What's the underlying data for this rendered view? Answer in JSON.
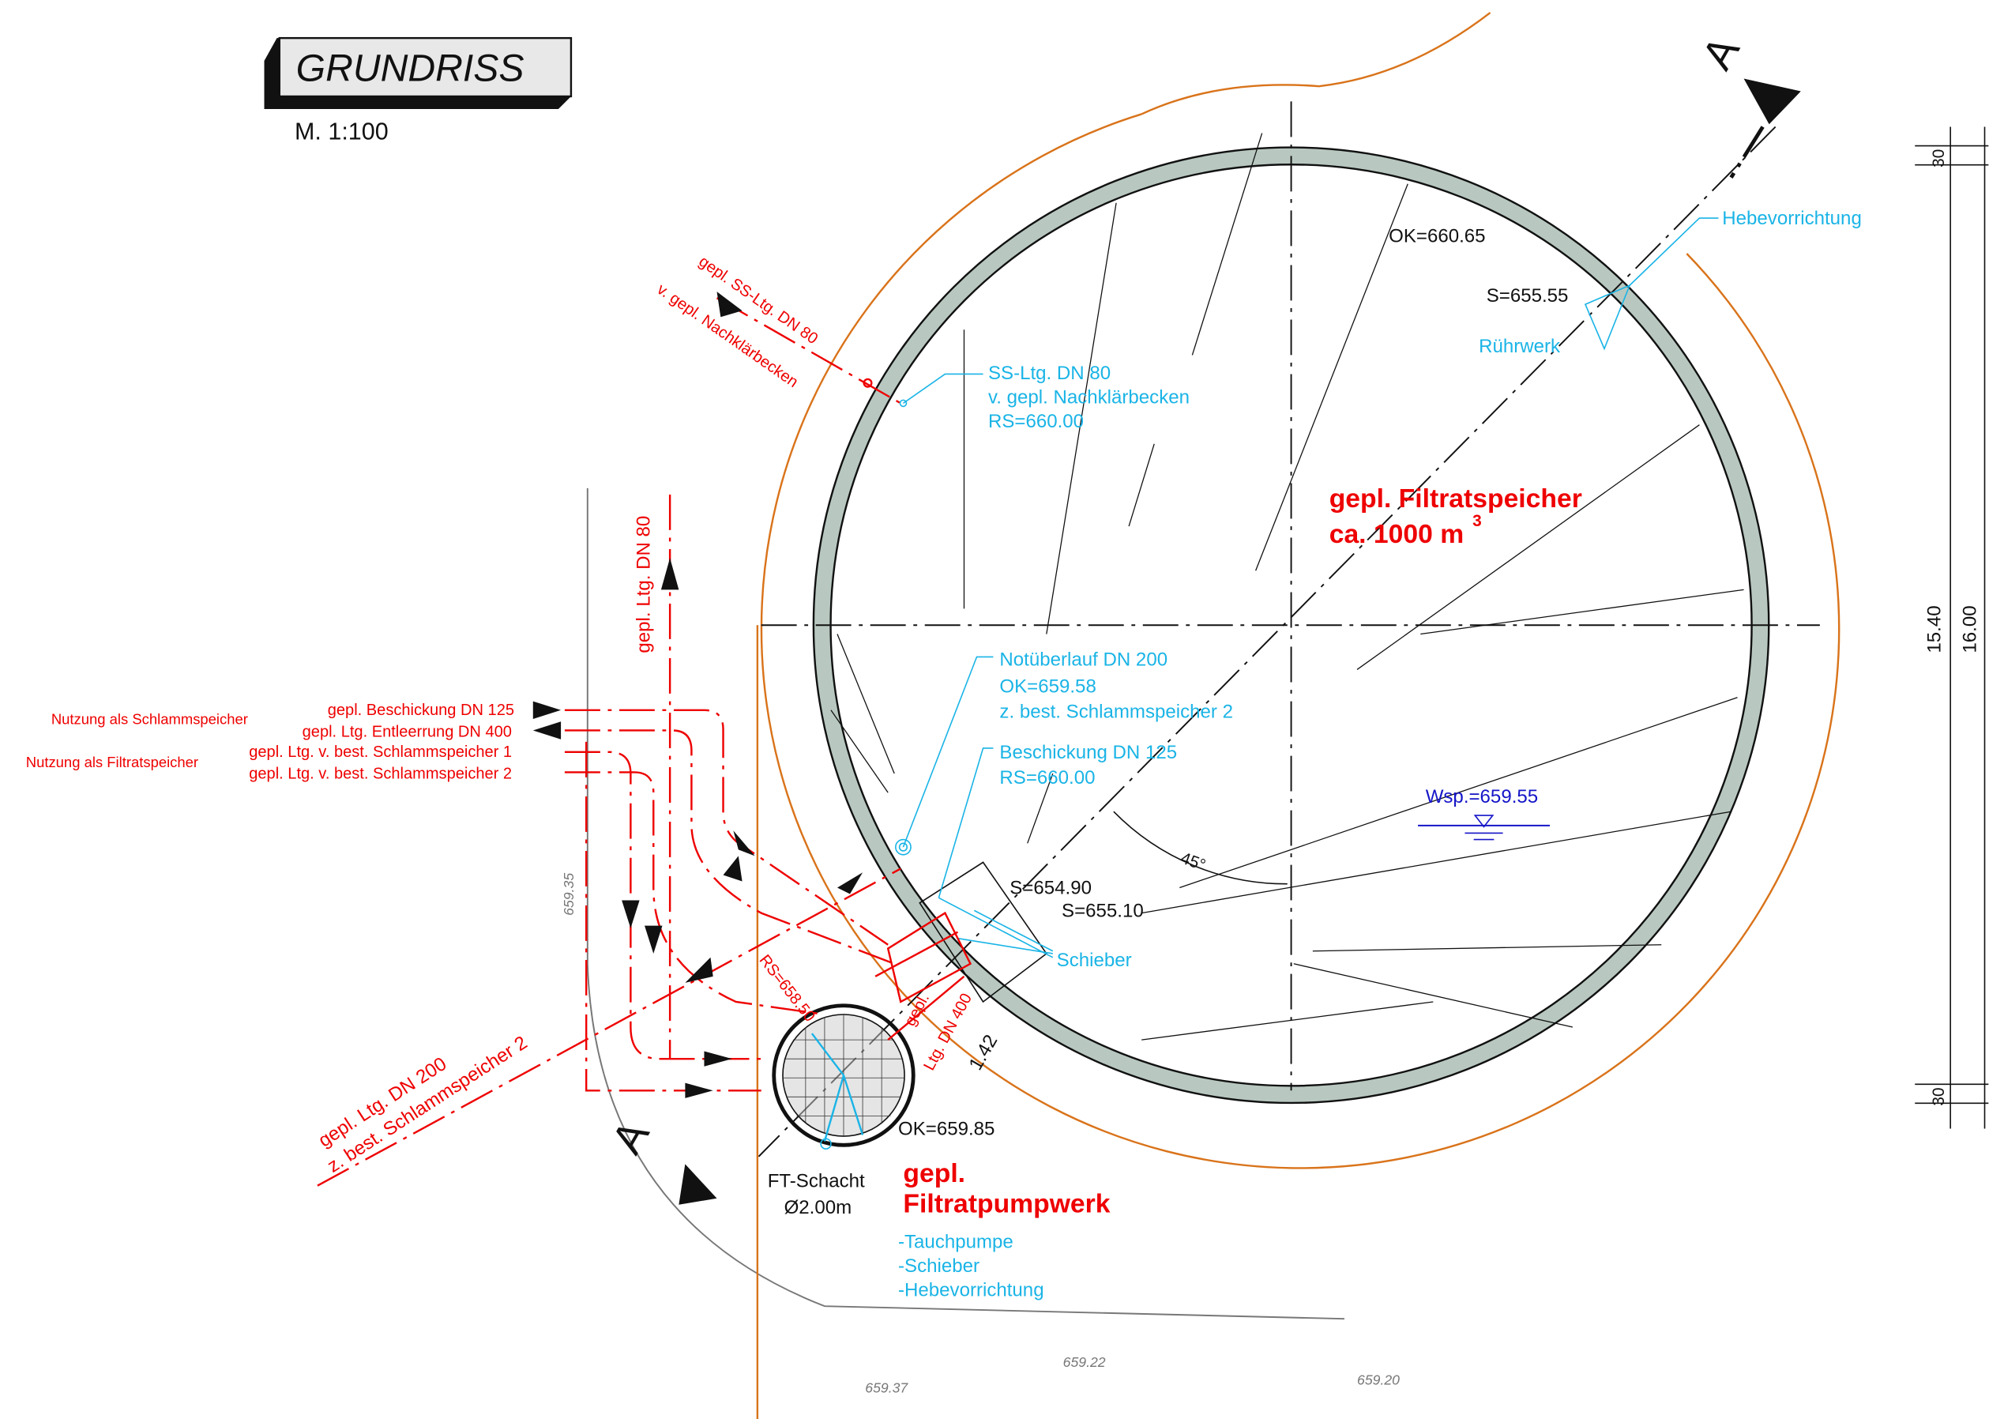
{
  "header": {
    "title": "GRUNDRISS",
    "scale": "M. 1:100"
  },
  "tank": {
    "ok": "OK=660.65",
    "s_mixer": "S=655.55",
    "mixer": "Rührwerk",
    "hoist": "Hebevorrichtung",
    "name_1": "gepl. Filtratspeicher",
    "name_2": "ca. 1000 m",
    "name_sup": "3",
    "water_level": "Wsp.=659.55",
    "angle": "45°"
  },
  "ss_line": {
    "line_1": "SS-Ltg. DN 80",
    "line_2": "v. gepl. Nachklärbecken",
    "line_3": "RS=660.00",
    "red_1": "gepl. SS-Ltg. DN 80",
    "red_2": "v. gepl. Nachklärbecken",
    "vertical": "gepl. Ltg. DN 80"
  },
  "overflow": {
    "line_1": "Notüberlauf DN 200",
    "line_2": "OK=659.58",
    "line_3": "z. best. Schlammspeicher 2"
  },
  "feed": {
    "line_1": "Beschickung DN 125",
    "line_2": "RS=660.00"
  },
  "valve_box": {
    "s_1": "S=654.90",
    "s_2": "S=655.10",
    "valves": "Schieber"
  },
  "pipes": {
    "use_sludge": "Nutzung als Schlammspeicher",
    "feed": "gepl. Beschickung DN 125",
    "drain": "gepl. Ltg. Entleerrung DN 400",
    "use_filtrate": "Nutzung als Filtratspeicher",
    "from_1": "gepl. Ltg. v. best. Schlammspeicher 1",
    "from_2": "gepl. Ltg. v. best. Schlammspeicher 2",
    "rs": "RS=658.50",
    "dn400_1": "gepl.",
    "dn400_2": "Ltg. DN 400",
    "dn200_1": "gepl. Ltg. DN 200",
    "dn200_2": "z. best. Schlammspeicher 2"
  },
  "shaft": {
    "name": "FT-Schacht",
    "diameter": "Ø2.00m",
    "ok": "OK=659.85",
    "dim": "1.42",
    "pump_1": "gepl.",
    "pump_2": "Filtratpumpwerk",
    "item_1": "-Tauchpumpe",
    "item_2": "-Schieber",
    "item_3": "-Hebevorrichtung"
  },
  "terrain": {
    "h_1": "659.35",
    "h_2": "659.37",
    "h_3": "659.22",
    "h_4": "659.20"
  },
  "section": {
    "a_top": "A",
    "a_bottom": "A"
  },
  "dimensions": {
    "top": "30",
    "inner": "15.40",
    "outer": "16.00",
    "bottom": "30"
  }
}
